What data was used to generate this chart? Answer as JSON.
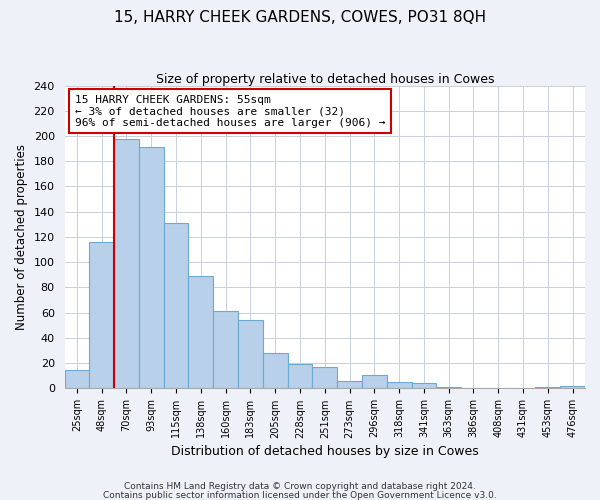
{
  "title": "15, HARRY CHEEK GARDENS, COWES, PO31 8QH",
  "subtitle": "Size of property relative to detached houses in Cowes",
  "xlabel": "Distribution of detached houses by size in Cowes",
  "ylabel": "Number of detached properties",
  "bin_labels": [
    "25sqm",
    "48sqm",
    "70sqm",
    "93sqm",
    "115sqm",
    "138sqm",
    "160sqm",
    "183sqm",
    "205sqm",
    "228sqm",
    "251sqm",
    "273sqm",
    "296sqm",
    "318sqm",
    "341sqm",
    "363sqm",
    "386sqm",
    "408sqm",
    "431sqm",
    "453sqm",
    "476sqm"
  ],
  "bar_heights": [
    15,
    116,
    198,
    191,
    131,
    89,
    61,
    54,
    28,
    19,
    17,
    6,
    11,
    5,
    4,
    1,
    0,
    0,
    0,
    1,
    2
  ],
  "bar_color": "#b8d0ea",
  "bar_edge_color": "#6aaad4",
  "marker_line_color": "#cc0000",
  "annotation_line1": "15 HARRY CHEEK GARDENS: 55sqm",
  "annotation_line2": "← 3% of detached houses are smaller (32)",
  "annotation_line3": "96% of semi-detached houses are larger (906) →",
  "annotation_box_color": "white",
  "annotation_box_edge_color": "#cc0000",
  "ylim": [
    0,
    240
  ],
  "yticks": [
    0,
    20,
    40,
    60,
    80,
    100,
    120,
    140,
    160,
    180,
    200,
    220,
    240
  ],
  "footer1": "Contains HM Land Registry data © Crown copyright and database right 2024.",
  "footer2": "Contains public sector information licensed under the Open Government Licence v3.0.",
  "background_color": "#eef2f8",
  "plot_background_color": "#ffffff",
  "grid_color": "#c8d0de"
}
